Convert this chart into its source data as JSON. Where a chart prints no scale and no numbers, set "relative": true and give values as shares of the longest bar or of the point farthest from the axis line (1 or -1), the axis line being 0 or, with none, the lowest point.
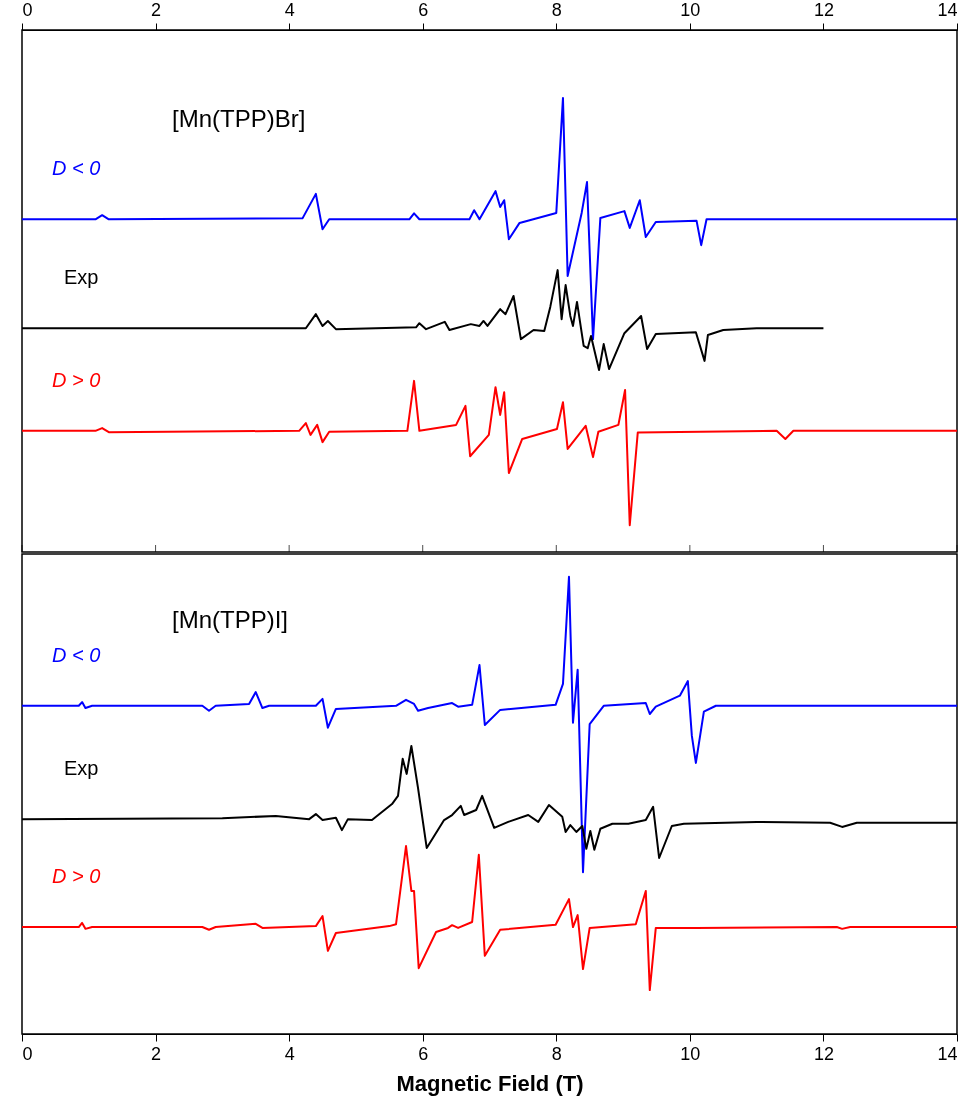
{
  "chart_data": [
    {
      "type": "line",
      "relative": true,
      "xlim": [
        0,
        14
      ],
      "xticks": [
        0,
        2,
        4,
        6,
        8,
        10,
        12,
        14
      ],
      "annotations": [
        "[Mn(TPP)Br]"
      ],
      "series": [
        {
          "name": "D < 0",
          "color": "#0000ff",
          "x": [
            0,
            1.1,
            1.2,
            1.3,
            4.2,
            4.4,
            4.5,
            4.6,
            5.8,
            5.87,
            5.95,
            6.7,
            6.77,
            6.85,
            7.09,
            7.16,
            7.22,
            7.29,
            7.45,
            8.0,
            8.1,
            8.17,
            8.38,
            8.46,
            8.55,
            8.66,
            9.02,
            9.1,
            9.25,
            9.34,
            9.49,
            10.1,
            10.17,
            10.25,
            14
          ],
          "values": [
            0.733,
            0.733,
            0.742,
            0.733,
            0.735,
            0.789,
            0.711,
            0.733,
            0.733,
            0.746,
            0.733,
            0.733,
            0.753,
            0.733,
            0.795,
            0.76,
            0.775,
            0.689,
            0.725,
            0.747,
            1.0,
            0.608,
            0.747,
            0.815,
            0.469,
            0.736,
            0.751,
            0.714,
            0.775,
            0.694,
            0.727,
            0.73,
            0.676,
            0.733,
            0.733
          ]
        },
        {
          "name": "Exp",
          "color": "#000000",
          "x": [
            0,
            4.25,
            4.4,
            4.5,
            4.58,
            4.7,
            5.9,
            5.95,
            6.05,
            6.33,
            6.4,
            6.72,
            6.85,
            6.91,
            6.97,
            7.16,
            7.24,
            7.36,
            7.47,
            7.66,
            7.82,
            7.91,
            8.02,
            8.08,
            8.14,
            8.21,
            8.25,
            8.31,
            8.41,
            8.47,
            8.52,
            8.64,
            8.71,
            8.79,
            9.02,
            9.27,
            9.36,
            9.49,
            10.09,
            10.22,
            10.27,
            10.5,
            11,
            12
          ],
          "values": [
            0.493,
            0.493,
            0.524,
            0.498,
            0.509,
            0.491,
            0.495,
            0.504,
            0.491,
            0.507,
            0.489,
            0.502,
            0.498,
            0.509,
            0.498,
            0.535,
            0.524,
            0.564,
            0.469,
            0.489,
            0.487,
            0.54,
            0.621,
            0.513,
            0.588,
            0.52,
            0.498,
            0.551,
            0.454,
            0.449,
            0.476,
            0.401,
            0.458,
            0.403,
            0.482,
            0.52,
            0.447,
            0.48,
            0.484,
            0.421,
            0.478,
            0.489,
            0.493,
            0.493
          ]
        },
        {
          "name": "D > 0",
          "color": "#ff0000",
          "x": [
            0,
            1.1,
            1.2,
            1.3,
            4.15,
            4.25,
            4.32,
            4.42,
            4.5,
            4.6,
            5.77,
            5.87,
            5.95,
            6.5,
            6.64,
            6.71,
            6.99,
            7.09,
            7.16,
            7.22,
            7.29,
            7.49,
            8.01,
            8.1,
            8.17,
            8.44,
            8.55,
            8.63,
            8.93,
            9.03,
            9.1,
            9.22,
            11.3,
            11.43,
            11.55,
            14
          ],
          "values": [
            0.267,
            0.267,
            0.273,
            0.264,
            0.267,
            0.284,
            0.258,
            0.28,
            0.242,
            0.265,
            0.267,
            0.377,
            0.267,
            0.28,
            0.322,
            0.211,
            0.258,
            0.363,
            0.302,
            0.352,
            0.174,
            0.249,
            0.271,
            0.33,
            0.227,
            0.278,
            0.209,
            0.265,
            0.28,
            0.357,
            0.059,
            0.263,
            0.267,
            0.249,
            0.267,
            0.267
          ]
        }
      ]
    },
    {
      "type": "line",
      "relative": true,
      "xlim": [
        0,
        14
      ],
      "xticks": [
        0,
        2,
        4,
        6,
        8,
        10,
        12,
        14
      ],
      "xlabel": "Magnetic Field (T)",
      "annotations": [
        "[Mn(TPP)I]"
      ],
      "series": [
        {
          "name": "D < 0",
          "color": "#0000ff",
          "x": [
            0,
            0.85,
            0.9,
            0.95,
            1.05,
            2.7,
            2.8,
            2.9,
            3.4,
            3.5,
            3.6,
            3.7,
            4.4,
            4.5,
            4.58,
            4.7,
            5.6,
            5.75,
            5.87,
            5.93,
            6.08,
            6.44,
            6.53,
            6.74,
            6.85,
            6.93,
            7.16,
            7.99,
            8.1,
            8.19,
            8.25,
            8.32,
            8.4,
            8.5,
            8.71,
            9.34,
            9.4,
            9.49,
            9.85,
            9.97,
            10.03,
            10.09,
            10.21,
            10.39,
            14
          ],
          "values": [
            0.718,
            0.718,
            0.726,
            0.713,
            0.718,
            0.718,
            0.707,
            0.718,
            0.722,
            0.748,
            0.713,
            0.718,
            0.718,
            0.733,
            0.67,
            0.711,
            0.718,
            0.731,
            0.722,
            0.707,
            0.713,
            0.724,
            0.716,
            0.72,
            0.807,
            0.676,
            0.709,
            0.72,
            0.766,
            1.0,
            0.681,
            0.797,
            0.354,
            0.678,
            0.718,
            0.724,
            0.7,
            0.716,
            0.74,
            0.772,
            0.652,
            0.593,
            0.705,
            0.718,
            0.718
          ]
        },
        {
          "name": "Exp",
          "color": "#000000",
          "x": [
            0,
            3.0,
            3.8,
            4.3,
            4.4,
            4.5,
            4.7,
            4.79,
            4.88,
            5.24,
            5.54,
            5.63,
            5.7,
            5.76,
            5.83,
            5.93,
            6.06,
            6.32,
            6.44,
            6.57,
            6.62,
            6.8,
            6.89,
            7.07,
            7.28,
            7.58,
            7.73,
            7.89,
            8.09,
            8.14,
            8.21,
            8.3,
            8.39,
            8.45,
            8.51,
            8.57,
            8.66,
            8.84,
            9.08,
            9.34,
            9.45,
            9.54,
            9.73,
            9.91,
            11,
            12.1,
            12.28,
            12.5,
            14
          ],
          "values": [
            0.47,
            0.472,
            0.477,
            0.47,
            0.481,
            0.468,
            0.473,
            0.446,
            0.47,
            0.468,
            0.503,
            0.521,
            0.602,
            0.569,
            0.63,
            0.538,
            0.407,
            0.468,
            0.479,
            0.499,
            0.479,
            0.49,
            0.521,
            0.451,
            0.464,
            0.479,
            0.464,
            0.501,
            0.475,
            0.442,
            0.457,
            0.442,
            0.455,
            0.405,
            0.444,
            0.403,
            0.449,
            0.46,
            0.46,
            0.468,
            0.497,
            0.385,
            0.455,
            0.46,
            0.464,
            0.462,
            0.453,
            0.462,
            0.462
          ]
        },
        {
          "name": "D > 0",
          "color": "#ff0000",
          "x": [
            0,
            0.85,
            0.9,
            0.95,
            1.05,
            2.7,
            2.8,
            2.9,
            3.5,
            3.6,
            4.4,
            4.5,
            4.58,
            4.7,
            5.5,
            5.6,
            5.75,
            5.83,
            5.87,
            5.94,
            6.2,
            6.38,
            6.44,
            6.53,
            6.74,
            6.84,
            6.93,
            7.16,
            7.99,
            8.19,
            8.25,
            8.32,
            8.4,
            8.5,
            9.19,
            9.34,
            9.4,
            9.49,
            10.09,
            12.2,
            12.28,
            12.4,
            14
          ],
          "values": [
            0.234,
            0.234,
            0.243,
            0.23,
            0.234,
            0.234,
            0.228,
            0.234,
            0.241,
            0.232,
            0.236,
            0.258,
            0.182,
            0.221,
            0.236,
            0.24,
            0.411,
            0.313,
            0.313,
            0.144,
            0.223,
            0.232,
            0.238,
            0.232,
            0.245,
            0.392,
            0.171,
            0.228,
            0.239,
            0.295,
            0.234,
            0.26,
            0.142,
            0.232,
            0.24,
            0.313,
            0.096,
            0.232,
            0.232,
            0.234,
            0.23,
            0.234,
            0.234
          ]
        }
      ]
    }
  ]
}
